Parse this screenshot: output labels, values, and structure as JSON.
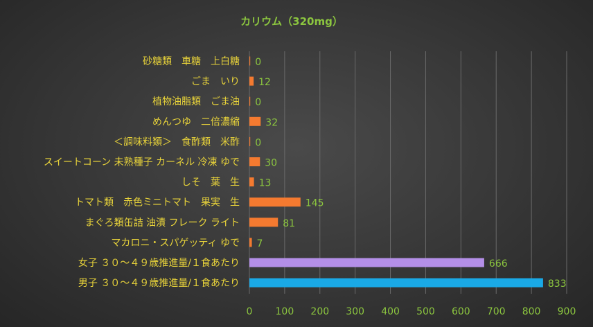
{
  "chart_data": {
    "type": "bar",
    "orientation": "horizontal",
    "title": "カリウム（320mg）",
    "categories": [
      "砂糖類　車糖　上白糖",
      "ごま　いり",
      "植物油脂類　ごま油",
      "めんつゆ　二倍濃縮",
      "＜調味料類＞　食酢類　米酢",
      "スイートコーン 未熟種子 カーネル 冷凍 ゆで",
      "しそ　葉　生",
      "トマト類　赤色ミニトマト　果実　生",
      "まぐろ類缶詰 油漬 フレーク ライト",
      "マカロニ・スパゲッティ ゆで",
      "女子 ３０～４９歳推進量/１食あたり",
      "男子 ３０～４９歳推進量/１食あたり"
    ],
    "values": [
      0,
      12,
      0,
      32,
      0,
      30,
      13,
      145,
      81,
      7,
      666,
      833
    ],
    "value_labels": [
      "0",
      "12",
      "0",
      "32",
      "0",
      "30",
      "13",
      "145",
      "81",
      "7",
      "666",
      "833"
    ],
    "bar_colors": [
      "#f47a30",
      "#f47a30",
      "#f47a30",
      "#f47a30",
      "#f47a30",
      "#f47a30",
      "#f47a30",
      "#f47a30",
      "#f47a30",
      "#f47a30",
      "#b48fe8",
      "#1aa9e6"
    ],
    "xlim": [
      0,
      900
    ],
    "xticks": [
      "0",
      "100",
      "200",
      "300",
      "400",
      "500",
      "600",
      "700",
      "800",
      "900"
    ],
    "grid": true,
    "legend": "none",
    "xlabel": "",
    "ylabel": ""
  }
}
